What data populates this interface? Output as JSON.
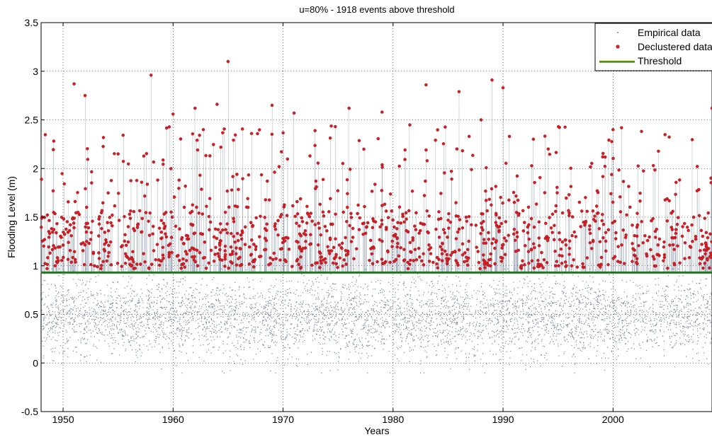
{
  "chart_data": {
    "type": "scatter",
    "title": "u=80% - 1918 events above threshold",
    "xlabel": "Years",
    "ylabel": "Flooding Level (m)",
    "xlim": [
      1948,
      2009
    ],
    "ylim": [
      -0.5,
      3.5
    ],
    "x_ticks": [
      "1950",
      "1960",
      "1970",
      "1980",
      "1990",
      "2000"
    ],
    "y_ticks": [
      "-0.5",
      "0",
      "0.5",
      "1",
      "1.5",
      "2",
      "2.5",
      "3",
      "3.5"
    ],
    "grid": true,
    "legend_position": "top-right",
    "threshold": 0.93,
    "events_above_threshold": 1918,
    "colors": {
      "empirical": "#4a5870",
      "declustered": "#d01e24",
      "threshold": "#1f7a1f",
      "legend_line": "#ffc000"
    },
    "series": [
      {
        "name": "Empirical data",
        "style": "dots",
        "range": [
          -0.12,
          3.1
        ]
      },
      {
        "name": "Declustered data",
        "style": "markers",
        "x": [
          1951.0,
          1952.0,
          1958.0,
          1965.0,
          1983.0,
          1989.0,
          1990.0,
          2009.0,
          1960.0,
          1964.0,
          1969.0,
          1979.0,
          1986.0,
          1962.0,
          1971.0,
          1976.0,
          1988.0,
          2000.0,
          1955.0,
          1983.0
        ],
        "y": [
          2.87,
          2.75,
          2.96,
          3.1,
          2.86,
          2.91,
          2.83,
          2.62,
          2.56,
          2.66,
          2.65,
          2.58,
          2.79,
          2.62,
          2.57,
          2.62,
          2.5,
          2.4,
          2.15,
          2.19
        ]
      },
      {
        "name": "Threshold",
        "style": "line",
        "y": 0.93
      }
    ]
  }
}
